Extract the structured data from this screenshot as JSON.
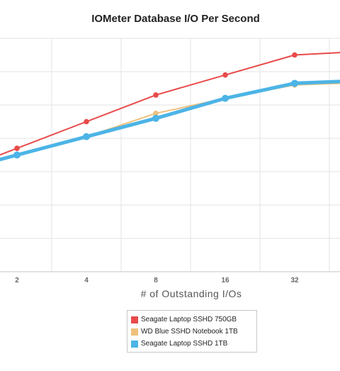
{
  "chart_data": {
    "type": "line",
    "title": "IOMeter Database I/O Per Second",
    "xlabel": "# of Outstanding I/Os",
    "ylabel": "",
    "categories": [
      "2",
      "4",
      "8",
      "16",
      "32"
    ],
    "ylim": [
      0,
      7
    ],
    "grid": true,
    "legend_position": "bottom-center",
    "series": [
      {
        "name": "Seagate Laptop SSHD 750GB",
        "color": "#e84a4a",
        "values": [
          3.7,
          4.5,
          5.3,
          5.9,
          6.5
        ]
      },
      {
        "name": "WD Blue SSHD Notebook 1TB",
        "color": "#efc07c",
        "values": [
          3.5,
          4.05,
          4.75,
          5.2,
          5.6
        ]
      },
      {
        "name": "Seagate Laptop SSHD 1TB",
        "color": "#4cb4e6",
        "values": [
          3.5,
          4.05,
          4.6,
          5.2,
          5.65
        ]
      }
    ]
  }
}
